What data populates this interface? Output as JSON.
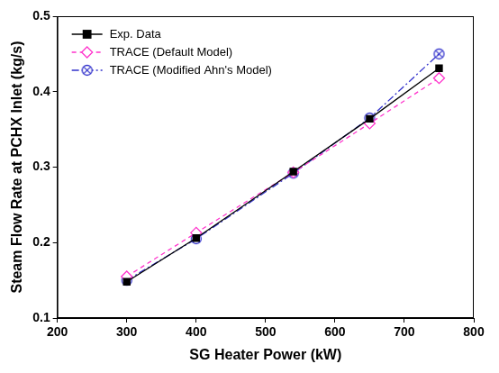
{
  "chart_data": {
    "type": "line",
    "x_label": "SG Heater Power (kW)",
    "y_label": "Steam Flow Rate at PCHX Inlet (kg/s)",
    "xlim": [
      200,
      800
    ],
    "xticks": [
      200,
      300,
      400,
      500,
      600,
      700,
      800
    ],
    "ylim": [
      0.1,
      0.5
    ],
    "yticks": [
      0.1,
      0.2,
      0.3,
      0.4,
      0.5
    ],
    "grid": false,
    "legend": "upper left",
    "x": [
      300,
      400,
      540,
      650,
      750
    ],
    "series": [
      {
        "name": "Exp. Data",
        "color": "#000000",
        "marker": "filled_square",
        "line_style": "solid",
        "values": [
          0.148,
          0.206,
          0.294,
          0.364,
          0.431
        ]
      },
      {
        "name": "TRACE (Default Model)",
        "color": "#ff33cc",
        "marker": "open_diamond",
        "line_style": "dashed",
        "values": [
          0.155,
          0.213,
          0.293,
          0.358,
          0.418
        ]
      },
      {
        "name": "TRACE (Modified Ahn's Model)",
        "color": "#3333cc",
        "marker": "circle_cross",
        "line_style": "dashdot",
        "values": [
          0.15,
          0.205,
          0.292,
          0.365,
          0.45
        ]
      }
    ]
  }
}
